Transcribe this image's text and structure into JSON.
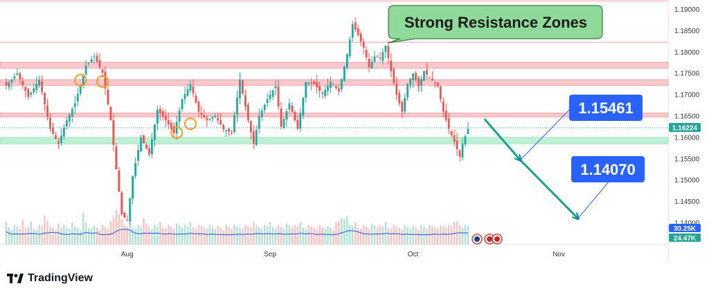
{
  "chart_data": {
    "type": "candlestick",
    "title": "",
    "price_axis": {
      "ylim": [
        1.1378,
        1.1922
      ],
      "ticks": [
        "1.19000",
        "1.18500",
        "1.18000",
        "1.17500",
        "1.17000",
        "1.16500",
        "1.16000",
        "1.15500",
        "1.15000",
        "1.14500",
        "1.14000"
      ],
      "tick_values": [
        1.19,
        1.185,
        1.18,
        1.175,
        1.17,
        1.165,
        1.16,
        1.155,
        1.15,
        1.145,
        1.14
      ]
    },
    "time_axis": {
      "labels": [
        "Aug",
        "Sep",
        "Oct",
        "Nov"
      ],
      "label_bars": [
        44,
        96,
        148,
        201
      ]
    },
    "resistance_zones": [
      {
        "low": 1.1762,
        "high": 1.1776
      },
      {
        "low": 1.1722,
        "high": 1.1735
      },
      {
        "low": 1.1648,
        "high": 1.1657
      }
    ],
    "support_zone": {
      "low": 1.1585,
      "high": 1.16
    },
    "extra_lines": [
      1.192,
      1.1823
    ],
    "current_price": "1.16224",
    "current_price_value": 1.16224,
    "volume_badges": [
      "30.25K",
      "24.47K"
    ],
    "circle_markers": [
      {
        "bar": 27,
        "price": 1.1734
      },
      {
        "bar": 35,
        "price": 1.1731
      },
      {
        "bar": 62,
        "price": 1.1611
      },
      {
        "bar": 67,
        "price": 1.1632
      }
    ],
    "projection": {
      "arrow1": {
        "from": {
          "bar": 174,
          "price": 1.1643
        },
        "to": {
          "bar": 187,
          "price": 1.1547
        }
      },
      "arrow2": {
        "from": {
          "bar": 187,
          "price": 1.1547
        },
        "to": {
          "bar": 208,
          "price": 1.141
        }
      },
      "target1": "1.15461",
      "target2": "1.14070"
    },
    "callout": "Strong Resistance Zones",
    "ohlc_anchors": [
      [
        0,
        1.1722
      ],
      [
        4,
        1.175
      ],
      [
        8,
        1.1695
      ],
      [
        12,
        1.1735
      ],
      [
        16,
        1.162
      ],
      [
        19,
        1.1585
      ],
      [
        22,
        1.164
      ],
      [
        25,
        1.168
      ],
      [
        29,
        1.1768
      ],
      [
        32,
        1.179
      ],
      [
        35,
        1.1752
      ],
      [
        38,
        1.164
      ],
      [
        40,
        1.1525
      ],
      [
        42,
        1.142
      ],
      [
        44,
        1.1405
      ],
      [
        46,
        1.151
      ],
      [
        49,
        1.16
      ],
      [
        52,
        1.156
      ],
      [
        55,
        1.1665
      ],
      [
        58,
        1.164
      ],
      [
        61,
        1.161
      ],
      [
        64,
        1.169
      ],
      [
        67,
        1.1725
      ],
      [
        70,
        1.166
      ],
      [
        73,
        1.164
      ],
      [
        76,
        1.165
      ],
      [
        79,
        1.162
      ],
      [
        82,
        1.161
      ],
      [
        85,
        1.1735
      ],
      [
        88,
        1.164
      ],
      [
        90,
        1.1585
      ],
      [
        92,
        1.165
      ],
      [
        95,
        1.169
      ],
      [
        98,
        1.172
      ],
      [
        100,
        1.1625
      ],
      [
        103,
        1.168
      ],
      [
        106,
        1.162
      ],
      [
        109,
        1.173
      ],
      [
        112,
        1.1725
      ],
      [
        115,
        1.1702
      ],
      [
        118,
        1.173
      ],
      [
        121,
        1.1708
      ],
      [
        124,
        1.1795
      ],
      [
        126,
        1.1865
      ],
      [
        128,
        1.184
      ],
      [
        130,
        1.181
      ],
      [
        132,
        1.1765
      ],
      [
        134,
        1.179
      ],
      [
        136,
        1.1785
      ],
      [
        138,
        1.1815
      ],
      [
        140,
        1.1755
      ],
      [
        142,
        1.17
      ],
      [
        144,
        1.166
      ],
      [
        146,
        1.1725
      ],
      [
        148,
        1.175
      ],
      [
        150,
        1.172
      ],
      [
        152,
        1.1755
      ],
      [
        154,
        1.174
      ],
      [
        157,
        1.172
      ],
      [
        159,
        1.166
      ],
      [
        161,
        1.162
      ],
      [
        163,
        1.159
      ],
      [
        165,
        1.1555
      ],
      [
        166,
        1.1585
      ],
      [
        168,
        1.162
      ]
    ],
    "volumes": [
      34,
      26,
      22,
      30,
      28,
      24,
      38,
      25,
      27,
      35,
      24,
      22,
      30,
      29,
      44,
      36,
      28,
      26,
      22,
      32,
      25,
      30,
      27,
      24,
      33,
      28,
      26,
      22,
      48,
      34,
      25,
      24,
      29,
      26,
      22,
      30,
      27,
      24,
      36,
      42,
      52,
      46,
      38,
      30,
      28,
      34,
      26,
      24,
      30,
      27,
      40,
      32,
      26,
      24,
      30,
      28,
      34,
      26,
      24,
      30,
      27,
      24,
      32,
      29,
      26,
      30,
      28,
      34,
      26,
      24,
      30,
      28,
      26,
      24,
      30,
      27,
      24,
      28,
      26,
      22,
      30,
      27,
      24,
      30,
      28,
      26,
      24,
      30,
      28,
      26,
      34,
      30,
      26,
      24,
      30,
      28,
      34,
      26,
      24,
      30,
      27,
      24,
      32,
      29,
      26,
      30,
      28,
      34,
      26,
      24,
      30,
      28,
      26,
      24,
      30,
      27,
      24,
      28,
      26,
      22,
      34,
      36,
      40,
      38,
      44,
      30,
      28,
      34,
      26,
      24,
      30,
      27,
      24,
      32,
      29,
      26,
      30,
      28,
      34,
      26,
      24,
      30,
      28,
      26,
      24,
      30,
      27,
      24,
      28,
      26,
      22,
      30,
      27,
      24,
      30,
      28,
      26,
      24,
      30,
      28,
      26,
      30,
      28,
      34,
      36,
      30,
      26,
      30,
      28,
      34
    ]
  },
  "footer": {
    "brand": "TradingView"
  }
}
